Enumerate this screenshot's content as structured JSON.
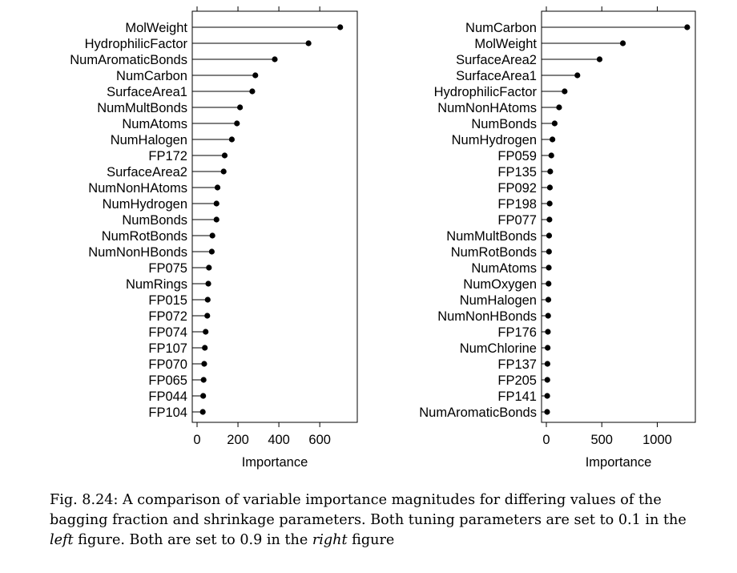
{
  "chart_data": [
    {
      "type": "dot",
      "panel": "left",
      "xlabel": "Importance",
      "xlim": [
        0,
        760
      ],
      "xticks": [
        0,
        200,
        400,
        600
      ],
      "categories": [
        "MolWeight",
        "HydrophilicFactor",
        "NumAromaticBonds",
        "NumCarbon",
        "SurfaceArea1",
        "NumMultBonds",
        "NumAtoms",
        "NumHalogen",
        "FP172",
        "SurfaceArea2",
        "NumNonHAtoms",
        "NumHydrogen",
        "NumBonds",
        "NumRotBonds",
        "NumNonHBonds",
        "FP075",
        "NumRings",
        "FP015",
        "FP072",
        "FP074",
        "FP107",
        "FP070",
        "FP065",
        "FP044",
        "FP104"
      ],
      "values": [
        700,
        545,
        380,
        285,
        270,
        210,
        195,
        170,
        135,
        130,
        100,
        95,
        95,
        75,
        72,
        58,
        55,
        52,
        50,
        42,
        38,
        35,
        32,
        30,
        28
      ]
    },
    {
      "type": "dot",
      "panel": "right",
      "xlabel": "Importance",
      "xlim": [
        0,
        1300
      ],
      "xticks": [
        0,
        500,
        1000
      ],
      "categories": [
        "NumCarbon",
        "MolWeight",
        "SurfaceArea2",
        "SurfaceArea1",
        "HydrophilicFactor",
        "NumNonHAtoms",
        "NumBonds",
        "NumHydrogen",
        "FP059",
        "FP135",
        "FP092",
        "FP198",
        "FP077",
        "NumMultBonds",
        "NumRotBonds",
        "NumAtoms",
        "NumOxygen",
        "NumHalogen",
        "NumNonHBonds",
        "FP176",
        "NumChlorine",
        "FP137",
        "FP205",
        "FP141",
        "NumAromaticBonds"
      ],
      "values": [
        1270,
        690,
        480,
        280,
        165,
        115,
        75,
        55,
        45,
        35,
        32,
        30,
        28,
        25,
        24,
        22,
        20,
        18,
        16,
        14,
        12,
        10,
        9,
        8,
        7
      ]
    }
  ],
  "caption": {
    "part1": "Fig. 8.24: A comparison of variable importance magnitudes for differing values of the bagging fraction and shrinkage parameters. Both tuning parameters are set to 0.1 in the ",
    "em1": "left",
    "part2": " figure. Both are set to 0.9 in the ",
    "em2": "right",
    "part3": " figure"
  }
}
